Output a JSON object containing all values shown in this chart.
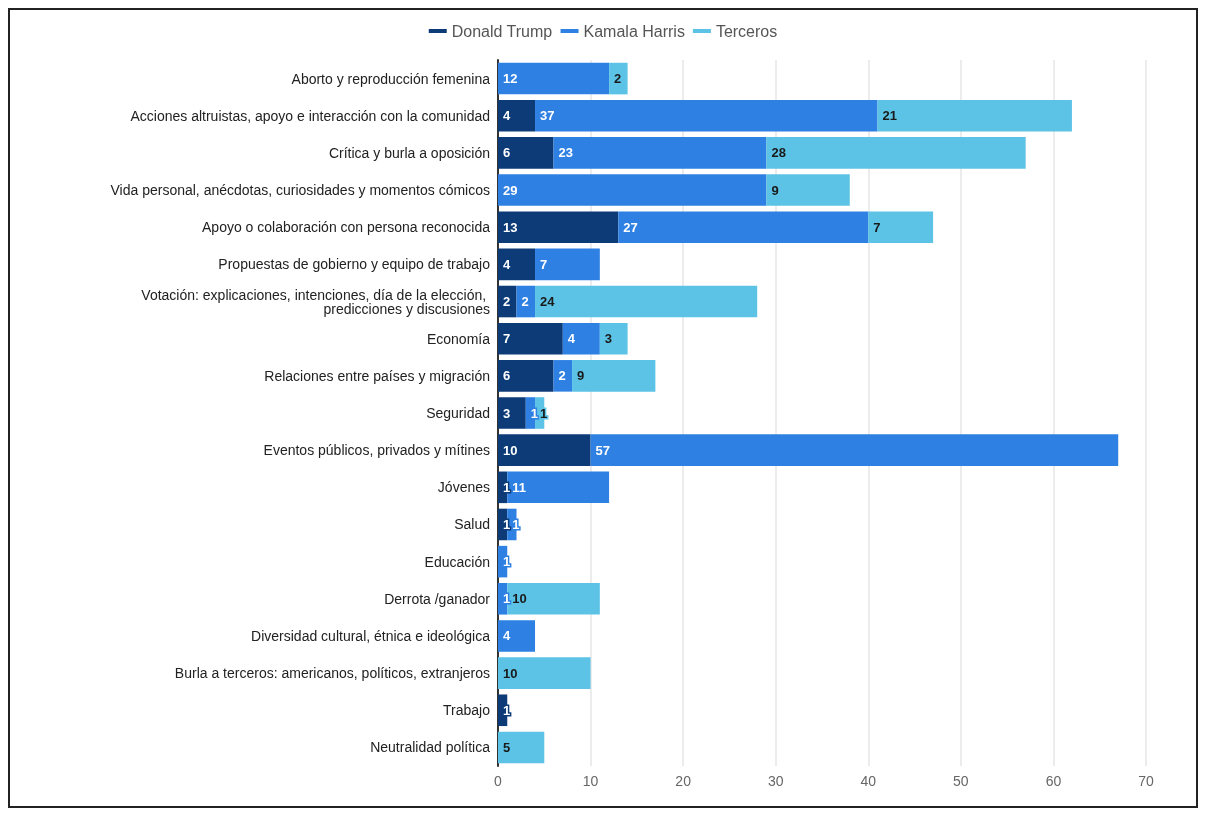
{
  "chart_data": {
    "type": "bar",
    "orientation": "horizontal",
    "stacked": true,
    "data_labels": true,
    "grid": "x",
    "legend": "top",
    "categories": [
      "Aborto y reproducción femenina",
      "Acciones altruistas, apoyo e interacción con la comunidad",
      "Crítica y burla a oposición",
      "Vida personal, anécdotas, curiosidades y momentos cómicos",
      "Apoyo o colaboración con persona reconocida",
      "Propuestas de gobierno y equipo de trabajo",
      "Votación: explicaciones, intenciones, día de la elección, predicciones y discusiones",
      "Economía",
      "Relaciones entre países y migración",
      "Seguridad",
      "Eventos públicos, privados y mítines",
      "Jóvenes",
      "Salud",
      "Educación",
      "Derrota /ganador",
      "Diversidad cultural, étnica e ideológica",
      "Burla a terceros: americanos, políticos, extranjeros",
      "Trabajo",
      "Neutralidad política"
    ],
    "series": [
      {
        "name": "Donald Trump",
        "color": "#0d3b78",
        "values": [
          null,
          4,
          6,
          null,
          13,
          4,
          2,
          7,
          6,
          3,
          10,
          1,
          1,
          null,
          null,
          null,
          null,
          1,
          null
        ]
      },
      {
        "name": "Kamala Harris",
        "color": "#2f80e3",
        "values": [
          12,
          37,
          23,
          29,
          27,
          7,
          2,
          4,
          2,
          1,
          57,
          11,
          1,
          1,
          1,
          4,
          null,
          null,
          null
        ]
      },
      {
        "name": "Terceros",
        "color": "#5cc3e6",
        "values": [
          2,
          21,
          28,
          9,
          7,
          null,
          24,
          3,
          9,
          1,
          null,
          null,
          null,
          null,
          10,
          null,
          10,
          null,
          5
        ]
      }
    ],
    "xlim": [
      0,
      70
    ],
    "xticks": [
      0,
      10,
      20,
      30,
      40,
      50,
      60,
      70
    ]
  }
}
